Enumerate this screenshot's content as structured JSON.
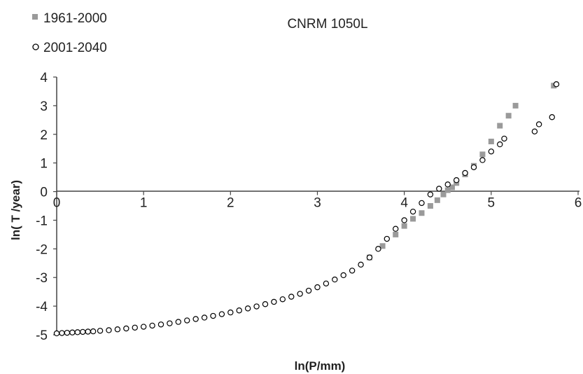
{
  "chart_data": {
    "type": "scatter",
    "title": "CNRM 1050L",
    "xlabel": "ln(P/mm)",
    "ylabel": "ln( T /year)",
    "xlim": [
      0,
      6
    ],
    "ylim": [
      -5,
      4
    ],
    "xticks": [
      "0",
      "1",
      "2",
      "3",
      "4",
      "5",
      "6"
    ],
    "yticks": [
      "4",
      "3",
      "2",
      "1",
      "0",
      "-1",
      "-2",
      "-3",
      "-4",
      "-5"
    ],
    "legend_position": "top-left",
    "grid": false,
    "series": [
      {
        "name": "1961-2000",
        "marker": "filled-square",
        "color": "#9a9a9a",
        "x": [
          3.6,
          3.75,
          3.9,
          4.0,
          4.1,
          4.2,
          4.3,
          4.38,
          4.45,
          4.5,
          4.55,
          4.6,
          4.7,
          4.8,
          4.9,
          5.0,
          5.1,
          5.2,
          5.28,
          5.72
        ],
        "y": [
          -2.3,
          -1.9,
          -1.5,
          -1.2,
          -0.95,
          -0.75,
          -0.5,
          -0.3,
          -0.1,
          0.05,
          0.15,
          0.3,
          0.6,
          0.9,
          1.3,
          1.75,
          2.3,
          2.65,
          3.0,
          3.7
        ]
      },
      {
        "name": "2001-2040",
        "marker": "open-circle",
        "color": "#000000",
        "x": [
          0.0,
          0.06,
          0.12,
          0.18,
          0.24,
          0.3,
          0.36,
          0.42,
          0.5,
          0.6,
          0.7,
          0.8,
          0.9,
          1.0,
          1.1,
          1.2,
          1.3,
          1.4,
          1.5,
          1.6,
          1.7,
          1.8,
          1.9,
          2.0,
          2.1,
          2.2,
          2.3,
          2.4,
          2.5,
          2.6,
          2.7,
          2.8,
          2.9,
          3.0,
          3.1,
          3.2,
          3.3,
          3.4,
          3.5,
          3.6,
          3.7,
          3.8,
          3.9,
          4.0,
          4.1,
          4.2,
          4.3,
          4.4,
          4.5,
          4.6,
          4.7,
          4.8,
          4.9,
          5.0,
          5.1,
          5.15,
          5.5,
          5.55,
          5.7,
          5.75
        ],
        "y": [
          -4.95,
          -4.94,
          -4.93,
          -4.92,
          -4.91,
          -4.9,
          -4.89,
          -4.88,
          -4.86,
          -4.84,
          -4.81,
          -4.78,
          -4.75,
          -4.72,
          -4.68,
          -4.64,
          -4.6,
          -4.55,
          -4.5,
          -4.45,
          -4.4,
          -4.34,
          -4.28,
          -4.22,
          -4.15,
          -4.08,
          -4.01,
          -3.93,
          -3.85,
          -3.76,
          -3.67,
          -3.57,
          -3.46,
          -3.34,
          -3.21,
          -3.07,
          -2.92,
          -2.76,
          -2.55,
          -2.3,
          -2.0,
          -1.65,
          -1.3,
          -1.0,
          -0.7,
          -0.4,
          -0.1,
          0.1,
          0.25,
          0.4,
          0.65,
          0.85,
          1.1,
          1.4,
          1.65,
          1.85,
          2.1,
          2.35,
          2.6,
          3.75
        ]
      }
    ]
  }
}
